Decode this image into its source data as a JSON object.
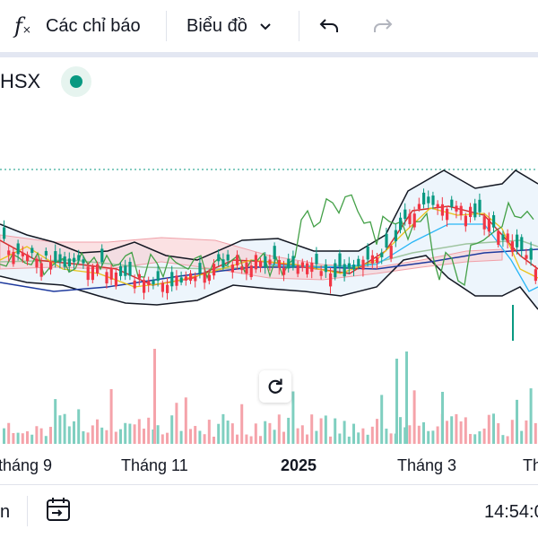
{
  "toolbar": {
    "indicators_label": "Các chỉ báo",
    "chart_type_label": "Biểu đồ"
  },
  "symbol": {
    "exchange": "HSX",
    "status_color": "#089981"
  },
  "time_axis": {
    "ticks": [
      "tháng 9",
      "Tháng 11",
      "2025",
      "Tháng 3",
      "Th"
    ]
  },
  "bottom_bar": {
    "left_text": "n",
    "clock": "14:54:0"
  },
  "colors": {
    "up": "#089981",
    "down": "#f23645",
    "up_volume": "#7fcfc0",
    "down_volume": "#f5a3aa",
    "bollinger": "#131722",
    "ma_red": "#d32f2f",
    "ma_blue": "#1e3a9e",
    "ma_yellow": "#e9c31a",
    "ma_cyan": "#29b6f6",
    "indicator_green": "#43a047",
    "ichimoku_cloud": "#f8c8cc"
  }
}
